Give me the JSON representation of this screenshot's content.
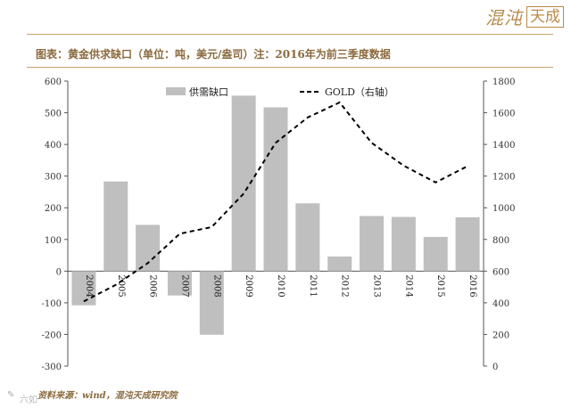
{
  "brand": {
    "name": "混沌",
    "box": "天成"
  },
  "title": "图表：黄金供求缺口（单位：吨，美元/盎司）注：2016年为前三季度数据",
  "source": "资料来源：wind，混沌天成研究院",
  "watermark": "六如",
  "colors": {
    "bar": "#bfbfbf",
    "line": "#000000",
    "accent": "#8b6a3e",
    "rule": "#c8a46b"
  },
  "chart_data": {
    "type": "bar",
    "categories": [
      "2004",
      "2005",
      "2006",
      "2007",
      "2008",
      "2009",
      "2010",
      "2011",
      "2012",
      "2013",
      "2014",
      "2015",
      "2016"
    ],
    "series": [
      {
        "name": "供需缺口",
        "type": "bar",
        "axis": "left",
        "values": [
          -108,
          283,
          146,
          -77,
          -201,
          554,
          517,
          214,
          46,
          174,
          171,
          108,
          170
        ]
      },
      {
        "name": "GOLD（右轴）",
        "type": "line",
        "style": "dashed",
        "axis": "right",
        "values": [
          409,
          513,
          650,
          836,
          878,
          1090,
          1410,
          1570,
          1665,
          1410,
          1266,
          1160,
          1263
        ]
      }
    ],
    "yleft": {
      "ylim": [
        -300,
        600
      ],
      "ticks": [
        -300,
        -200,
        -100,
        0,
        100,
        200,
        300,
        400,
        500,
        600
      ]
    },
    "yright": {
      "ylim": [
        0,
        1800
      ],
      "ticks": [
        0,
        200,
        400,
        600,
        800,
        1000,
        1200,
        1400,
        1600,
        1800
      ]
    },
    "legend": "top",
    "grid": false
  }
}
